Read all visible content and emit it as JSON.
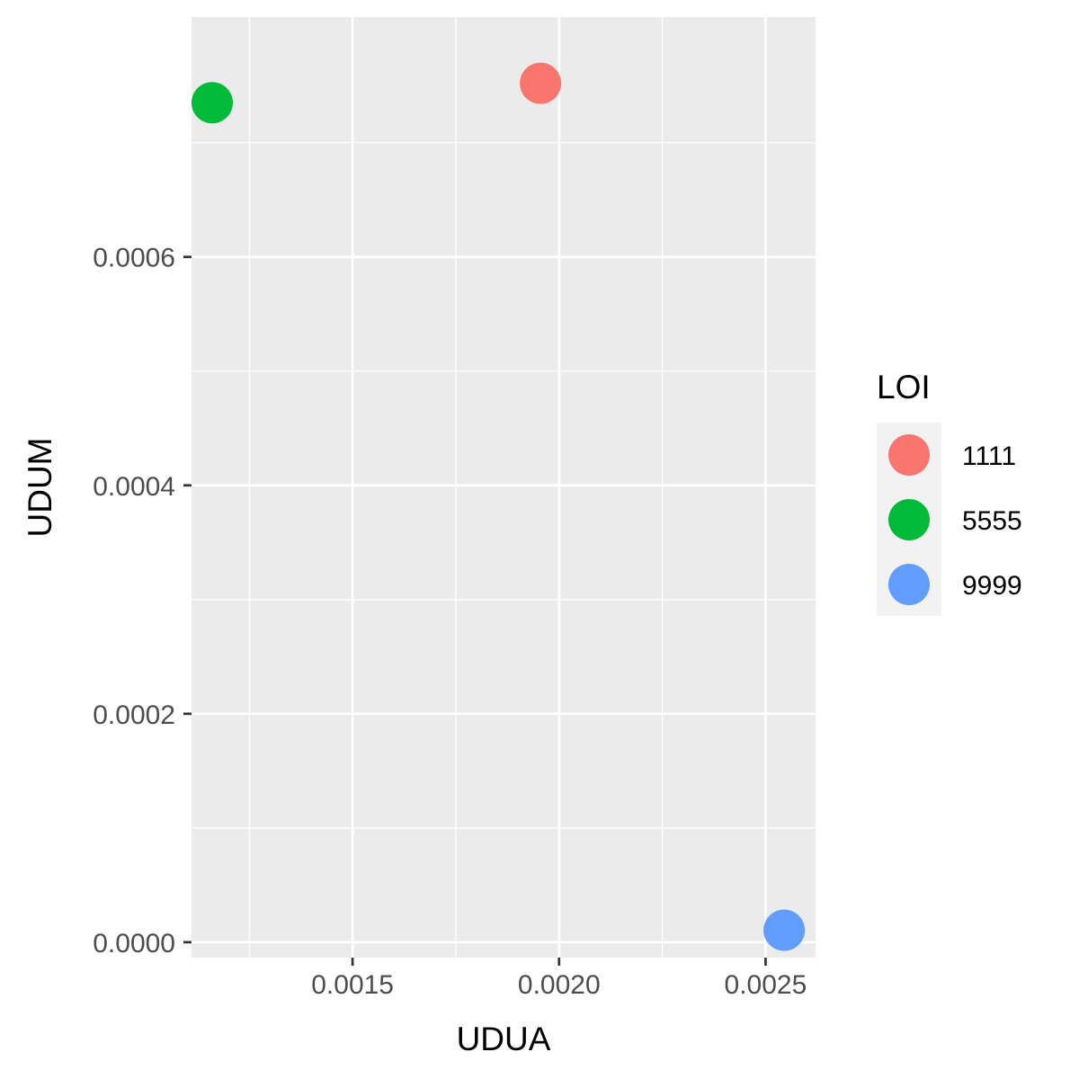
{
  "chart_data": {
    "type": "scatter",
    "title": "",
    "xlabel": "UDUA",
    "ylabel": "UDUM",
    "xlim": [
      0.00111,
      0.002621
    ],
    "ylim": [
      -1.35e-05,
      0.00081
    ],
    "x_ticks": [
      0.0015,
      0.002,
      0.0025
    ],
    "x_tick_labels": [
      "0.0015",
      "0.0020",
      "0.0025"
    ],
    "y_ticks": [
      0,
      0.0002,
      0.0004,
      0.0006
    ],
    "y_tick_labels": [
      "0.0000",
      "0.0002",
      "0.0004",
      "0.0006"
    ],
    "grid": true,
    "legend_title": "LOI",
    "legend_position": "right",
    "series": [
      {
        "name": "1111",
        "color": "#F8766D",
        "points": [
          {
            "x": 0.001955,
            "y": 0.000752
          }
        ]
      },
      {
        "name": "5555",
        "color": "#00BA38",
        "points": [
          {
            "x": 0.00116,
            "y": 0.000735
          }
        ]
      },
      {
        "name": "9999",
        "color": "#619CFF",
        "points": [
          {
            "x": 0.002545,
            "y": 1.05e-05
          }
        ]
      }
    ]
  },
  "colors": {
    "panel_background": "#EBEBEB",
    "grid_major": "#FFFFFF",
    "tick_text": "#4D4D4D",
    "axis_tick": "#333333"
  }
}
